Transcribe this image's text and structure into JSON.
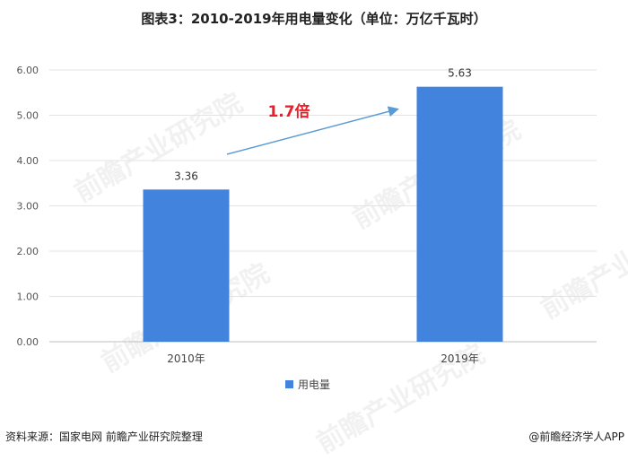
{
  "title": "图表3：2010-2019年用电量变化（单位：万亿千瓦时）",
  "annotation": "1.7倍",
  "footer": {
    "source": "资料来源：国家电网  前瞻产业研究院整理",
    "credit": "@前瞻经济学人APP"
  },
  "watermark_text": "前瞻产业研究院",
  "colors": {
    "bar": "#4183dd",
    "annotation": "#e8202a",
    "arrow": "#5b9bd5",
    "grid": "#e3e3e3"
  },
  "chart_data": {
    "type": "bar",
    "categories": [
      "2010年",
      "2019年"
    ],
    "series": [
      {
        "name": "用电量",
        "values": [
          3.36,
          5.63
        ]
      }
    ],
    "value_labels": [
      "3.36",
      "5.63"
    ],
    "ylim": [
      0,
      6
    ],
    "yticks": [
      "0.00",
      "1.00",
      "2.00",
      "3.00",
      "4.00",
      "5.00",
      "6.00"
    ],
    "grid": true,
    "legend": "bottom"
  }
}
